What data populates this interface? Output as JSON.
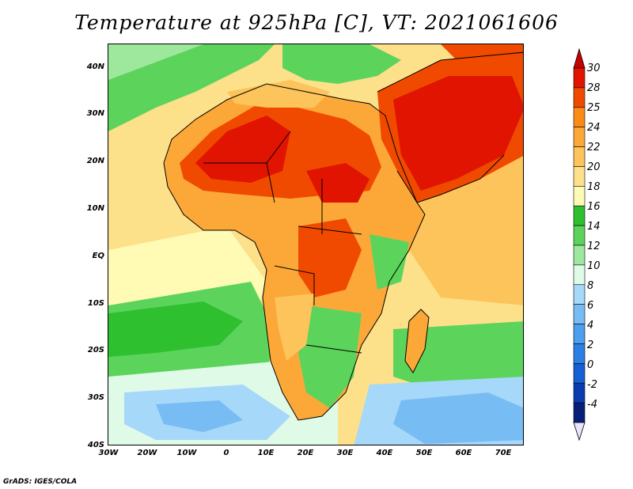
{
  "title": "Temperature at 925hPa [C], VT: 2021061606",
  "lat_labels": [
    "40N",
    "30N",
    "20N",
    "10N",
    "EQ",
    "10S",
    "20S",
    "30S",
    "40S"
  ],
  "lon_labels": [
    "30W",
    "20W",
    "10W",
    "0",
    "10E",
    "20E",
    "30E",
    "40E",
    "50E",
    "60E",
    "70E"
  ],
  "colorbar": {
    "labels": [
      "30",
      "28",
      "25",
      "24",
      "22",
      "20",
      "18",
      "16",
      "14",
      "12",
      "10",
      "8",
      "6",
      "4",
      "2",
      "0",
      "-2",
      "-4"
    ],
    "colors": [
      "#e01400",
      "#f04a00",
      "#fa8c14",
      "#fca838",
      "#fcc45a",
      "#fde08a",
      "#fffab4",
      "#2fc02f",
      "#5cd45c",
      "#9ee89e",
      "#e0fae8",
      "#a6d8fa",
      "#78bcf4",
      "#4c9eee",
      "#2c80e4",
      "#1460d4",
      "#0a3cb0",
      "#06207a"
    ],
    "top_arrow_color": "#c80000",
    "bottom_arrow_color": "#e8e6fc"
  },
  "footer": "GrADS: IGES/COLA"
}
